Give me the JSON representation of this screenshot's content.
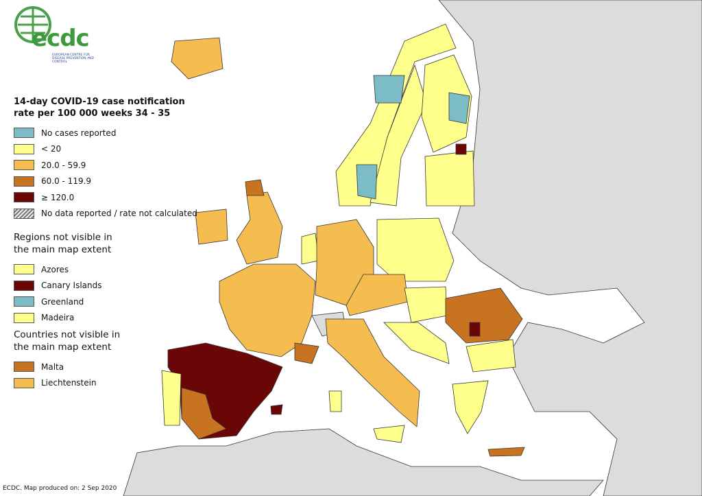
{
  "logo": {
    "text": "ecdc",
    "subtitle": "EUROPEAN CENTRE FOR DISEASE PREVENTION AND CONTROL"
  },
  "legend": {
    "title": "14-day COVID-19 case notification rate per 100 000 weeks 34 - 35",
    "items": [
      {
        "label": "No cases reported",
        "color": "#7bbcc6"
      },
      {
        "label": "< 20",
        "color": "#ffff8c"
      },
      {
        "label": "20.0 - 59.9",
        "color": "#f5bd4f"
      },
      {
        "label": "60.0 - 119.9",
        "color": "#c8731f"
      },
      {
        "label": "≥ 120.0",
        "color": "#6b0606"
      },
      {
        "label": "No data reported / rate not calculated",
        "color": "#9a9a9a",
        "hatched": true
      }
    ]
  },
  "regions_not_visible": {
    "title": "Regions not visible in the main map extent",
    "items": [
      {
        "label": "Azores",
        "color": "#ffff8c"
      },
      {
        "label": "Canary Islands",
        "color": "#6b0606"
      },
      {
        "label": "Greenland",
        "color": "#7bbcc6"
      },
      {
        "label": "Madeira",
        "color": "#ffff8c"
      }
    ]
  },
  "countries_not_visible": {
    "title": "Countries not visible in the main map extent",
    "items": [
      {
        "label": "Malta",
        "color": "#c8731f"
      },
      {
        "label": "Liechtenstein",
        "color": "#f5bd4f"
      }
    ]
  },
  "footer": "ECDC. Map produced on: 2 Sep 2020"
}
